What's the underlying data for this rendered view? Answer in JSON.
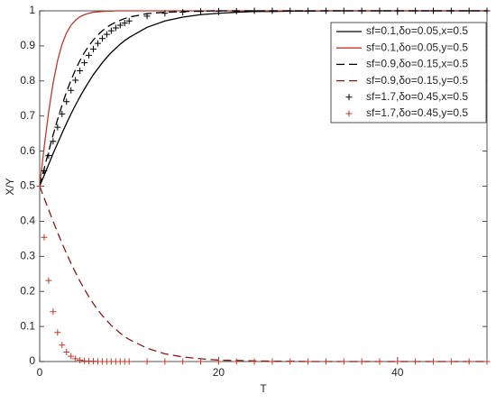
{
  "chart_data": {
    "type": "line",
    "xlabel": "T",
    "ylabel": "X/Y",
    "xlim": [
      0,
      50
    ],
    "ylim": [
      0,
      1
    ],
    "xticks": [
      0,
      20,
      40
    ],
    "yticks": [
      0,
      0.1,
      0.2,
      0.3,
      0.4,
      0.5,
      0.6,
      0.7,
      0.8,
      0.9,
      1
    ],
    "grid": false,
    "legend": "northeast",
    "x": [
      0,
      0.5,
      1,
      1.5,
      2,
      2.5,
      3,
      3.5,
      4,
      4.5,
      5,
      5.5,
      6,
      6.5,
      7,
      7.5,
      8,
      8.5,
      9,
      9.5,
      10,
      12,
      14,
      16,
      18,
      20,
      22,
      24,
      26,
      28,
      30,
      32,
      34,
      36,
      38,
      40,
      42,
      44,
      46,
      48,
      50
    ],
    "series": [
      {
        "name": "sf=0.1,δo=0.05,x=0.5",
        "color": "#000000",
        "linestyle": "solid",
        "marker": "none",
        "values": [
          0.5,
          0.531,
          0.562,
          0.593,
          0.622,
          0.651,
          0.679,
          0.706,
          0.731,
          0.755,
          0.777,
          0.798,
          0.818,
          0.835,
          0.852,
          0.867,
          0.881,
          0.893,
          0.905,
          0.915,
          0.924,
          0.953,
          0.971,
          0.982,
          0.989,
          0.993,
          0.996,
          0.998,
          0.998,
          0.999,
          0.999,
          1,
          1,
          1,
          1,
          1,
          1,
          1,
          1,
          1,
          1
        ]
      },
      {
        "name": "sf=0.1,δo=0.05,y=0.5",
        "color": "#c0392b",
        "linestyle": "solid",
        "marker": "none",
        "values": [
          0.5,
          0.611,
          0.711,
          0.794,
          0.858,
          0.905,
          0.937,
          0.959,
          0.973,
          0.983,
          0.989,
          0.993,
          0.996,
          0.997,
          0.998,
          0.999,
          0.999,
          1,
          1,
          1,
          1,
          1,
          1,
          1,
          1,
          1,
          1,
          1,
          1,
          1,
          1,
          1,
          1,
          1,
          1,
          1,
          1,
          1,
          1,
          1,
          1
        ]
      },
      {
        "name": "sf=0.9,δo=0.15,x=0.5",
        "color": "#000000",
        "linestyle": "dashed",
        "marker": "none",
        "values": [
          0.5,
          0.55,
          0.599,
          0.646,
          0.69,
          0.731,
          0.769,
          0.802,
          0.832,
          0.858,
          0.881,
          0.9,
          0.917,
          0.931,
          0.943,
          0.953,
          0.961,
          0.968,
          0.973,
          0.978,
          0.982,
          0.992,
          0.996,
          0.998,
          0.999,
          1,
          1,
          1,
          1,
          1,
          1,
          1,
          1,
          1,
          1,
          1,
          1,
          1,
          1,
          1,
          1
        ]
      },
      {
        "name": "sf=0.9,δo=0.15,y=0.5",
        "color": "#8b1a10",
        "linestyle": "dashed",
        "marker": "none",
        "values": [
          0.5,
          0.466,
          0.433,
          0.4,
          0.368,
          0.337,
          0.308,
          0.28,
          0.254,
          0.229,
          0.206,
          0.185,
          0.165,
          0.147,
          0.131,
          0.117,
          0.103,
          0.092,
          0.081,
          0.071,
          0.063,
          0.038,
          0.022,
          0.013,
          0.008,
          0.004,
          0.003,
          0.002,
          0.001,
          0.001,
          0,
          0,
          0,
          0,
          0,
          0,
          0,
          0,
          0,
          0,
          0
        ]
      },
      {
        "name": "sf=1.7,δo=0.45,x=0.5",
        "color": "#000000",
        "linestyle": "none",
        "marker": "+",
        "values": [
          0.5,
          0.544,
          0.587,
          0.628,
          0.668,
          0.706,
          0.741,
          0.773,
          0.802,
          0.829,
          0.852,
          0.873,
          0.891,
          0.907,
          0.921,
          0.933,
          0.943,
          0.951,
          0.959,
          0.965,
          0.971,
          0.985,
          0.993,
          0.996,
          0.998,
          0.999,
          0.999,
          1,
          1,
          1,
          1,
          1,
          1,
          1,
          1,
          1,
          1,
          1,
          1,
          1,
          1
        ]
      },
      {
        "name": "sf=1.7,δo=0.45,y=0.5",
        "color": "#c0392b",
        "linestyle": "none",
        "marker": "+",
        "values": [
          0.5,
          0.354,
          0.231,
          0.142,
          0.083,
          0.047,
          0.027,
          0.015,
          0.008,
          0.004,
          0.002,
          0.001,
          0.001,
          0,
          0,
          0,
          0,
          0,
          0,
          0,
          0,
          0,
          0,
          0,
          0,
          0,
          0,
          0,
          0,
          0,
          0,
          0,
          0,
          0,
          0,
          0,
          0,
          0,
          0,
          0,
          0
        ]
      }
    ]
  }
}
